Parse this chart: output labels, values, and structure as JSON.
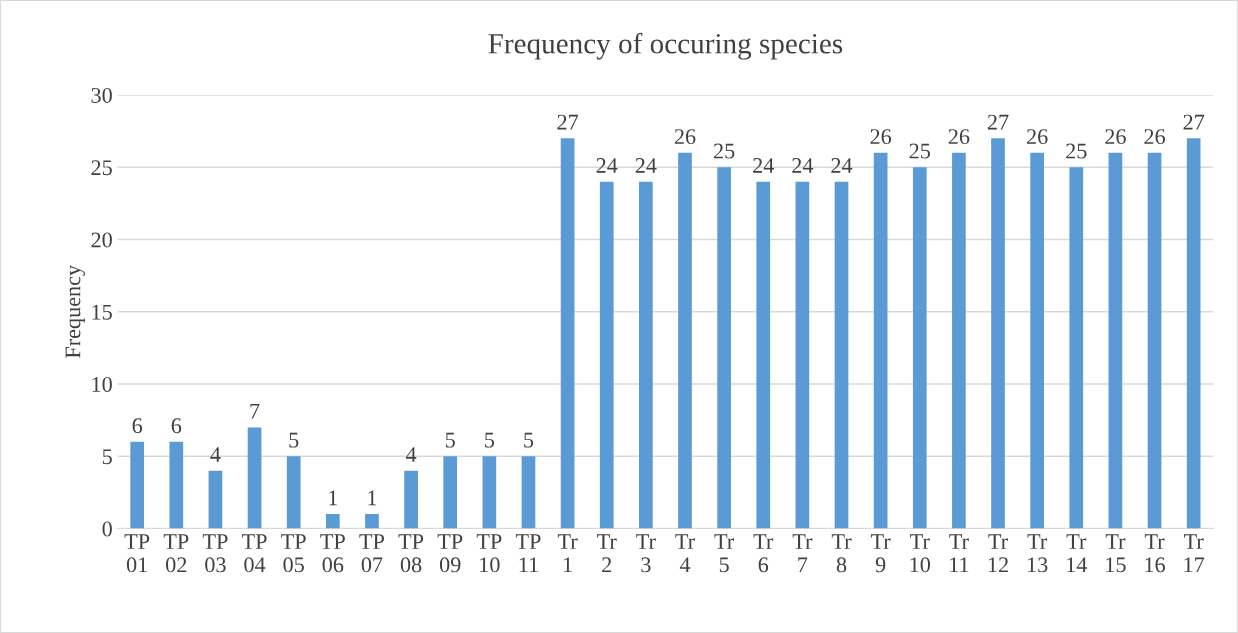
{
  "chart_data": {
    "type": "bar",
    "title": "Frequency of occuring species",
    "ylabel": "Frequency",
    "categories": [
      "TP 01",
      "TP 02",
      "TP 03",
      "TP 04",
      "TP 05",
      "TP 06",
      "TP 07",
      "TP 08",
      "TP 09",
      "TP 10",
      "TP 11",
      "Tr 1",
      "Tr 2",
      "Tr 3",
      "Tr 4",
      "Tr 5",
      "Tr 6",
      "Tr 7",
      "Tr 8",
      "Tr 9",
      "Tr 10",
      "Tr 11",
      "Tr 12",
      "Tr 13",
      "Tr 14",
      "Tr 15",
      "Tr 16",
      "Tr 17"
    ],
    "values": [
      6,
      6,
      4,
      7,
      5,
      1,
      1,
      4,
      5,
      5,
      5,
      27,
      24,
      24,
      26,
      25,
      24,
      24,
      24,
      26,
      25,
      26,
      27,
      26,
      25,
      26,
      26,
      27
    ],
    "color": "#5b9bd5",
    "ylim": [
      0,
      30
    ],
    "yticks": [
      0,
      5,
      10,
      15,
      20,
      25,
      30
    ],
    "grid": "y",
    "data_labels": true,
    "legend": false
  }
}
